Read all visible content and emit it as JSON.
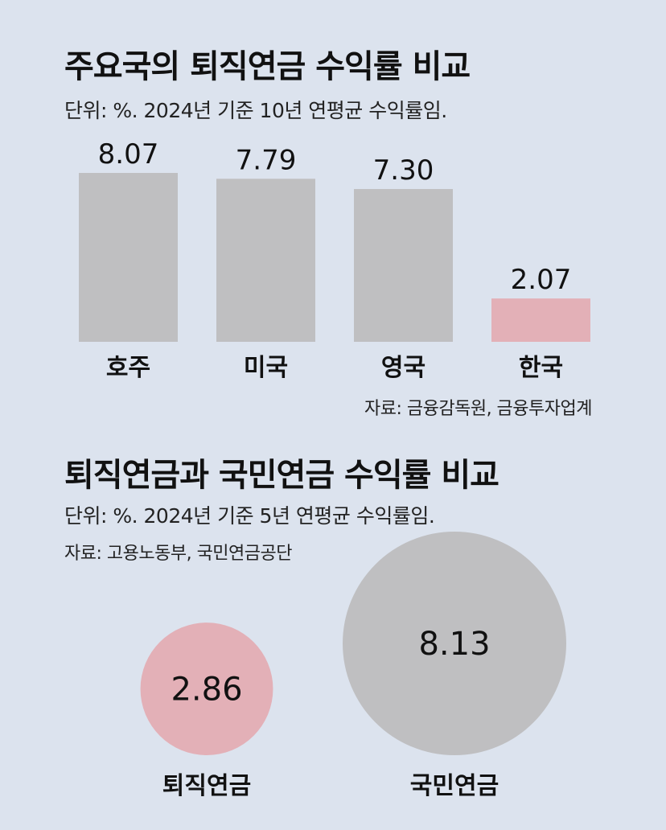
{
  "colors": {
    "background": "#dce3ee",
    "bar_default": "#bfbfc1",
    "bar_highlight": "#e3b0b7"
  },
  "chart_data": [
    {
      "type": "bar",
      "title": "주요국의 퇴직연금 수익률 비교",
      "subtitle": "단위: %. 2024년 기준 10년 연평균 수익률임.",
      "source": "자료: 금융감독원, 금융투자업계",
      "categories": [
        "호주",
        "미국",
        "영국",
        "한국"
      ],
      "values": [
        8.07,
        7.79,
        7.3,
        2.07
      ],
      "value_labels": [
        "8.07",
        "7.79",
        "7.30",
        "2.07"
      ],
      "highlight_index": 3,
      "ylim": [
        0,
        8.07
      ],
      "grid": false
    },
    {
      "type": "bubble",
      "title": "퇴직연금과 국민연금 수익률 비교",
      "subtitle": "단위: %. 2024년 기준 5년 연평균 수익률임.",
      "source": "자료: 고용노동부, 국민연금공단",
      "categories": [
        "퇴직연금",
        "국민연금"
      ],
      "values": [
        2.86,
        8.13
      ],
      "value_labels": [
        "2.86",
        "8.13"
      ],
      "highlight_index": 0
    }
  ]
}
